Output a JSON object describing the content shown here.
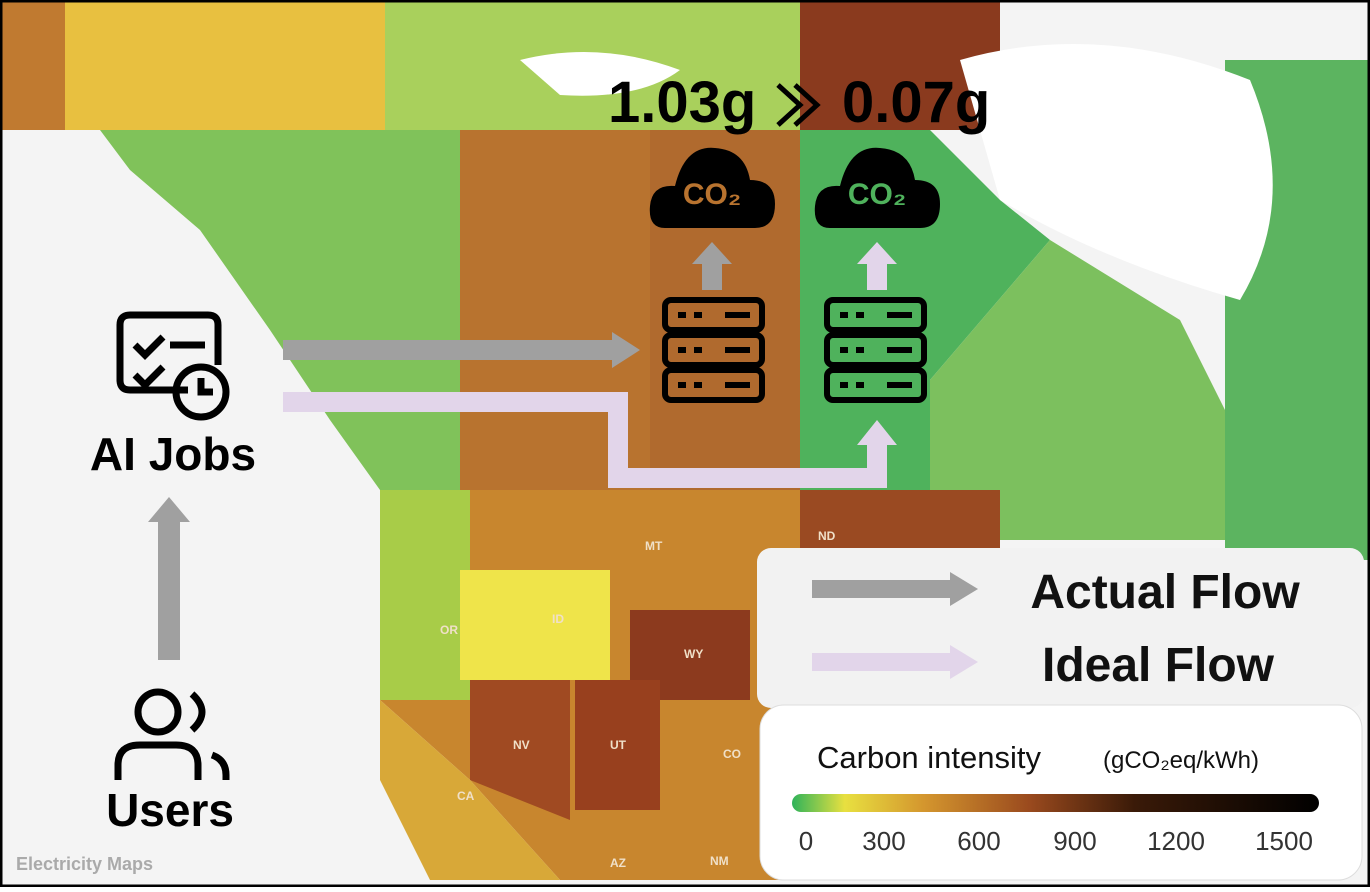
{
  "header": {
    "actual_cost": "1.03g",
    "ideal_cost": "0.07g"
  },
  "clouds": [
    "CO₂",
    "CO₂"
  ],
  "nodes": {
    "jobs": "AI Jobs",
    "users": "Users"
  },
  "legend": {
    "actual": "Actual Flow",
    "ideal": "Ideal Flow"
  },
  "colorbar": {
    "title": "Carbon intensity",
    "unit": "(gCO₂eq/kWh)",
    "ticks": [
      "0",
      "300",
      "600",
      "900",
      "1200",
      "1500"
    ]
  },
  "map": {
    "labels": [
      "MT",
      "ND",
      "ID",
      "WY",
      "OR",
      "NV",
      "UT",
      "CO",
      "CA",
      "NM",
      "AZ"
    ],
    "credit": "Electricity Maps"
  }
}
